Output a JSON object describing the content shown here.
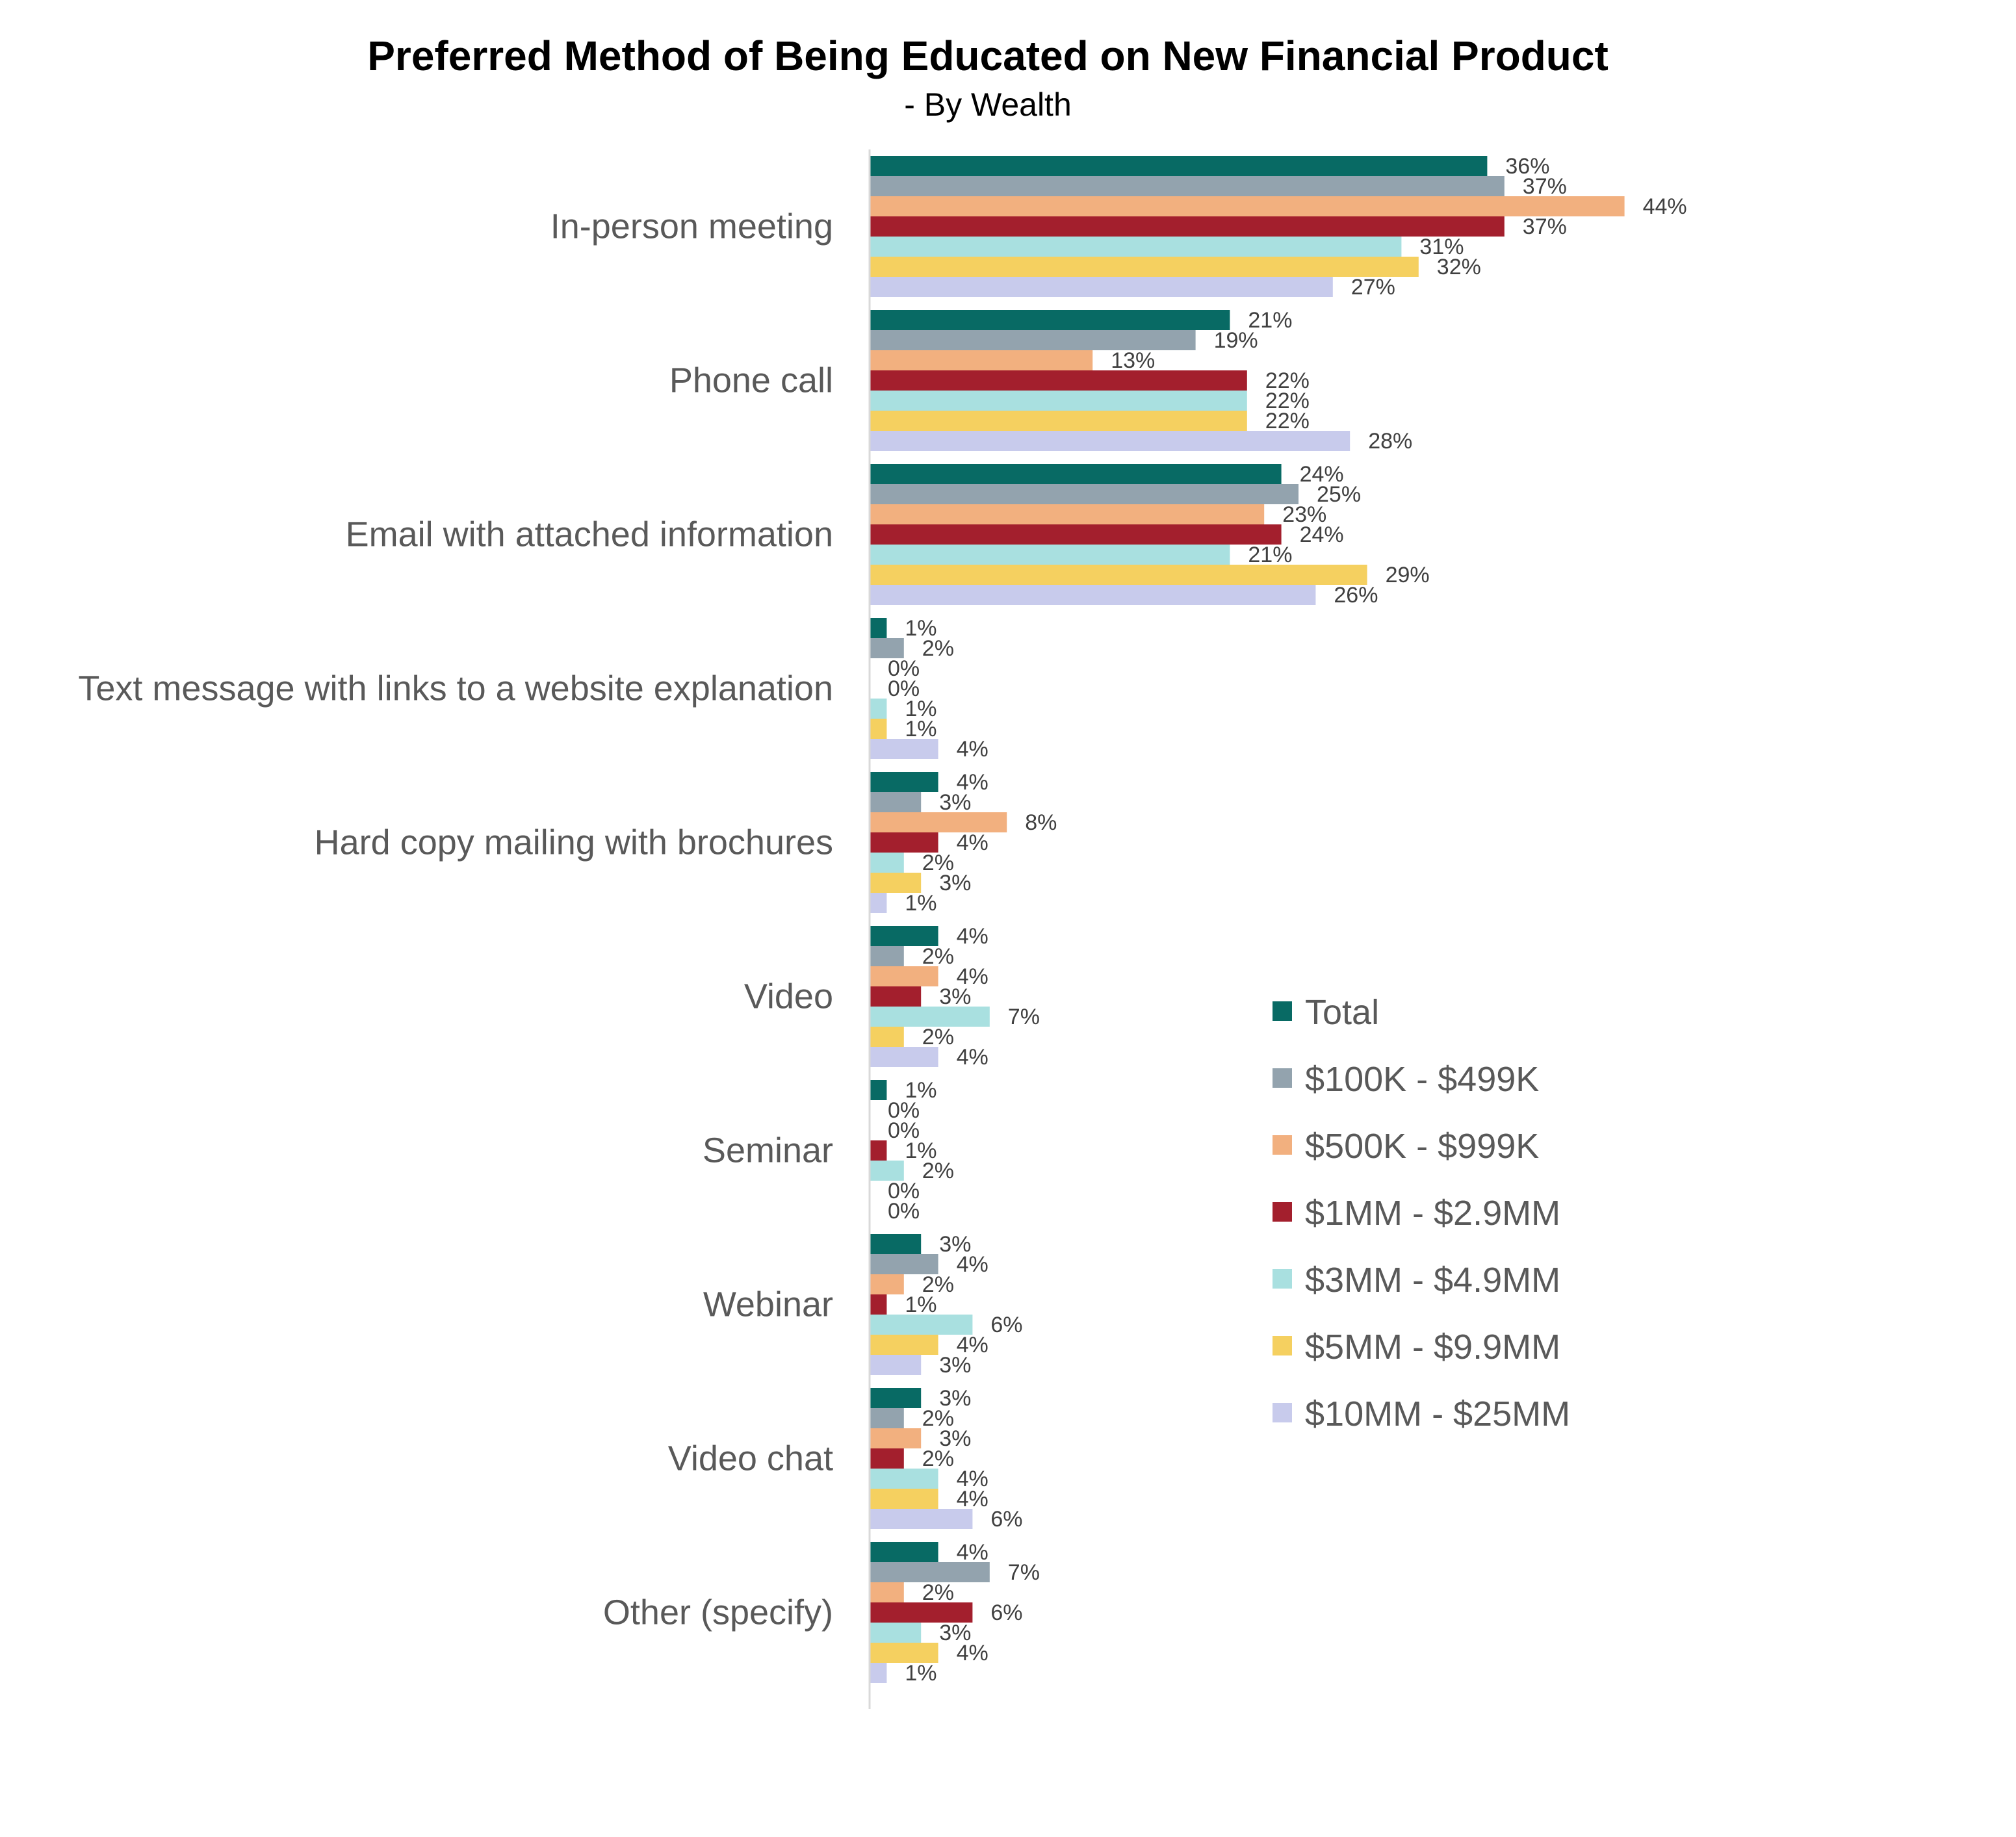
{
  "chart_data": {
    "type": "bar",
    "orientation": "horizontal",
    "title": "Preferred Method of Being Educated on New Financial Product",
    "subtitle": "- By Wealth",
    "xlabel": "",
    "ylabel": "",
    "value_suffix": "%",
    "xlim": [
      0,
      50
    ],
    "grid": false,
    "legend_position": "right",
    "categories": [
      "In-person meeting",
      "Phone call",
      "Email with attached information",
      "Text message with links to a website explanation",
      "Hard copy mailing with brochures",
      "Video",
      "Seminar",
      "Webinar",
      "Video chat",
      "Other (specify)"
    ],
    "series": [
      {
        "name": "Total",
        "color": "#086a64",
        "values": [
          36,
          21,
          24,
          1,
          4,
          4,
          1,
          3,
          3,
          4
        ]
      },
      {
        "name": "$100K - $499K",
        "color": "#93a3ae",
        "values": [
          37,
          19,
          25,
          2,
          3,
          2,
          0,
          4,
          2,
          7
        ]
      },
      {
        "name": "$500K - $999K",
        "color": "#f2b07f",
        "values": [
          44,
          13,
          23,
          0,
          8,
          4,
          0,
          2,
          3,
          2
        ]
      },
      {
        "name": "$1MM - $2.9MM",
        "color": "#a31f2d",
        "values": [
          37,
          22,
          24,
          0,
          4,
          3,
          1,
          1,
          2,
          6
        ]
      },
      {
        "name": "$3MM - $4.9MM",
        "color": "#a9e0e0",
        "values": [
          31,
          22,
          21,
          1,
          2,
          7,
          2,
          6,
          4,
          3
        ]
      },
      {
        "name": "$5MM - $9.9MM",
        "color": "#f5d060",
        "values": [
          32,
          22,
          29,
          1,
          3,
          2,
          0,
          4,
          4,
          4
        ]
      },
      {
        "name": "$10MM - $25MM",
        "color": "#c8cbec",
        "values": [
          27,
          28,
          26,
          4,
          1,
          4,
          0,
          3,
          6,
          1
        ]
      }
    ]
  }
}
